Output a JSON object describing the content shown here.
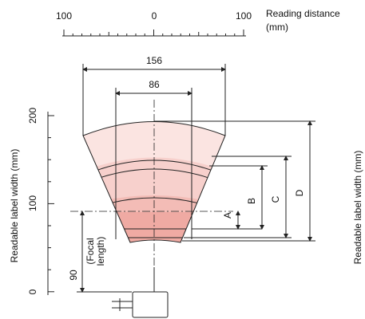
{
  "top_axis": {
    "ticks": [
      "100",
      "0",
      "100"
    ],
    "title": [
      "Reading distance",
      "(mm)"
    ]
  },
  "left_axis": {
    "ticks": [
      "200",
      "100",
      "0"
    ],
    "title": "Readable label width (mm)"
  },
  "dimensions": {
    "width_outer": "156",
    "width_inner": "86",
    "ranges": [
      "A",
      "B",
      "C",
      "D"
    ],
    "focal": [
      "90",
      "(Focal",
      "length)"
    ]
  },
  "right_axis_title": "Readable label width (mm)"
}
